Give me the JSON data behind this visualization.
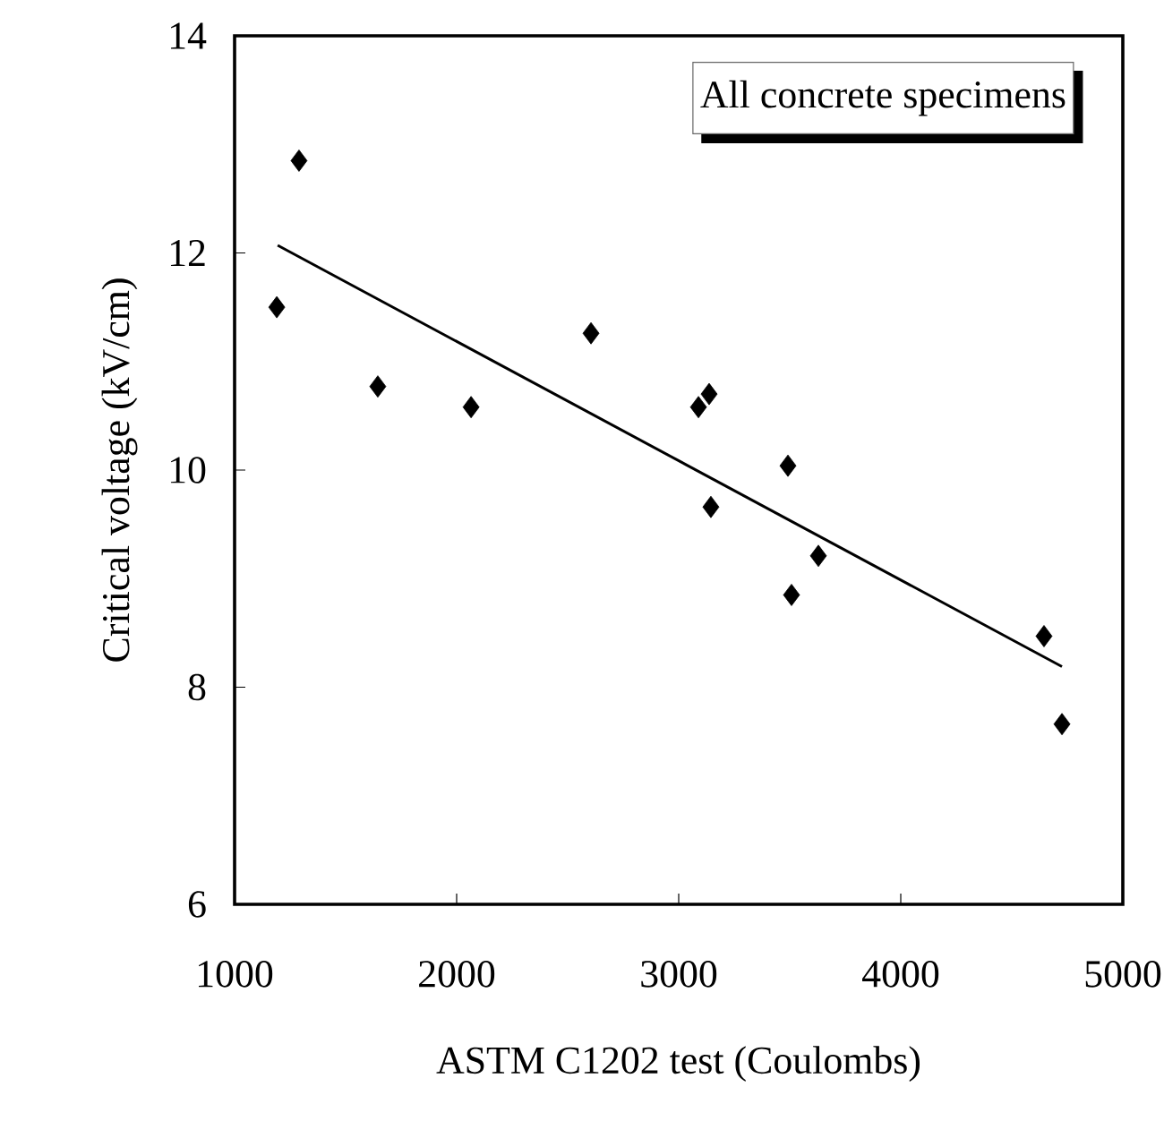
{
  "chart_data": {
    "type": "scatter",
    "xlabel": "ASTM C1202 test (Coulombs)",
    "ylabel": "Critical voltage (kV/cm)",
    "annotations": [
      "All concrete specimens"
    ],
    "xlim": [
      1000,
      5000
    ],
    "ylim": [
      6,
      14
    ],
    "xticks": [
      1000,
      2000,
      3000,
      4000,
      5000
    ],
    "yticks": [
      6,
      8,
      10,
      12,
      14
    ],
    "grid": false,
    "marker": "diamond",
    "series": [
      {
        "color": "#000000",
        "x": [
          1190,
          1290,
          1645,
          2065,
          2605,
          3089,
          3137,
          3145,
          3492,
          3508,
          3629,
          4645,
          4726
        ],
        "values": [
          11.5,
          12.85,
          10.77,
          10.58,
          11.26,
          10.58,
          10.7,
          9.66,
          10.04,
          8.85,
          9.21,
          8.47,
          7.66
        ]
      },
      {
        "type": "line",
        "color": "#000000",
        "marker": "none",
        "line_style": "solid",
        "x": [
          1194,
          4726
        ],
        "values": [
          12.07,
          8.19
        ]
      }
    ]
  }
}
